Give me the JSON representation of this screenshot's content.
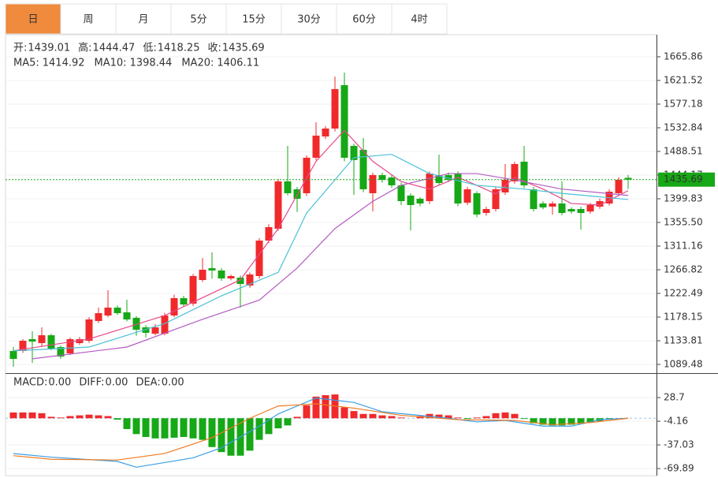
{
  "tabs": [
    "日",
    "周",
    "月",
    "5分",
    "15分",
    "30分",
    "60分",
    "4时"
  ],
  "active_tab": 0,
  "chart_data": [
    {
      "type": "candlestick",
      "up_color": "#f0292b",
      "down_color": "#16a816",
      "open": [
        1114.6,
        1114.6,
        1136.8,
        1129.4,
        1144.1,
        1122.0,
        1110.2,
        1129.4,
        1133.8,
        1170.8,
        1181.1,
        1195.9,
        1187,
        1176.7,
        1158.9,
        1147.1,
        1147.1,
        1181.1,
        1213.6,
        1203.3,
        1247.6,
        1269.8,
        1265.4,
        1250.6,
        1252.0,
        1237.3,
        1255.0,
        1321.5,
        1343.7,
        1432.4,
        1417.6,
        1410.2,
        1476.7,
        1516.6,
        1531.4,
        1612.7,
        1498.9,
        1491.5,
        1410.2,
        1444.2,
        1439.7,
        1425.0,
        1405.8,
        1399.8,
        1395.4,
        1444.2,
        1444.2,
        1447.1,
        1392.5,
        1410.2,
        1373.2,
        1380.6,
        1411.7,
        1432.4,
        1469.3,
        1417.6,
        1391.0,
        1385.1,
        1391.0,
        1380.6,
        1380.6,
        1376,
        1385.1,
        1391.0,
        1410.2,
        1439.01
      ],
      "high": [
        1122.0,
        1137,
        1151.5,
        1158.9,
        1147,
        1125,
        1140,
        1141,
        1178,
        1195.9,
        1228.4,
        1200,
        1210.7,
        1180,
        1163,
        1165,
        1186,
        1220,
        1218,
        1259,
        1289.0,
        1299.3,
        1270,
        1258,
        1256,
        1262,
        1326,
        1352,
        1437,
        1498.9,
        1422,
        1481,
        1543.2,
        1536,
        1628.9,
        1636.3,
        1503,
        1513.6,
        1449,
        1449,
        1444,
        1430,
        1410,
        1403,
        1451,
        1482.6,
        1449,
        1451,
        1422,
        1414,
        1385,
        1422,
        1464.9,
        1469,
        1498.9,
        1422,
        1395,
        1395,
        1432.4,
        1384,
        1385,
        1392,
        1400,
        1418,
        1440,
        1444.47
      ],
      "low": [
        1085.0,
        1111,
        1092.4,
        1122.0,
        1116,
        1099.8,
        1107,
        1126,
        1130,
        1167,
        1178,
        1182,
        1170,
        1143,
        1140,
        1144,
        1144,
        1178,
        1198,
        1199,
        1244,
        1250,
        1246,
        1247,
        1195.9,
        1233,
        1250,
        1317,
        1340,
        1406,
        1375,
        1405,
        1472,
        1512,
        1526,
        1470,
        1407.2,
        1412,
        1376.2,
        1430,
        1420,
        1388.0,
        1340.7,
        1386,
        1390,
        1425,
        1431,
        1386,
        1388,
        1365,
        1368,
        1376,
        1407,
        1428,
        1420,
        1376,
        1380,
        1370,
        1369,
        1372,
        1342,
        1372,
        1381,
        1387,
        1405,
        1418.25
      ],
      "close": [
        1099.8,
        1133.8,
        1132.3,
        1144.1,
        1119.0,
        1104.2,
        1136.8,
        1136.8,
        1173.7,
        1185.5,
        1195.9,
        1185.5,
        1173.7,
        1154.5,
        1148.6,
        1158.9,
        1181.1,
        1213.6,
        1201.8,
        1255.0,
        1266.8,
        1265.4,
        1250.6,
        1255.0,
        1240.2,
        1258.0,
        1321.5,
        1346.6,
        1432.4,
        1410.2,
        1399.8,
        1476.7,
        1518.1,
        1531.4,
        1605.3,
        1476.7,
        1472.3,
        1417.6,
        1444.2,
        1435.3,
        1425.0,
        1395.4,
        1388.0,
        1391.0,
        1447.1,
        1429.4,
        1435.3,
        1391.0,
        1417.6,
        1370.3,
        1380.6,
        1417.6,
        1435.3,
        1464.9,
        1425.0,
        1380.6,
        1383.6,
        1391.0,
        1373.2,
        1376,
        1373.2,
        1388.0,
        1395.4,
        1413.1,
        1435.3,
        1435.69
      ],
      "readout": [
        {
          "label": "开:",
          "value": "1439.01"
        },
        {
          "label": "高:",
          "value": "1444.47"
        },
        {
          "label": "低:",
          "value": "1418.25"
        },
        {
          "label": "收:",
          "value": "1435.69"
        }
      ],
      "readout_value_color": "#16a816",
      "series": [
        {
          "color": "#e8498a",
          "readout": {
            "label": "MA5:",
            "value": "1414.92"
          },
          "x": [
            0,
            8,
            16,
            24,
            28,
            32,
            35,
            38,
            41,
            44,
            47,
            49,
            51,
            53,
            56,
            59,
            62,
            65
          ],
          "values": [
            1115,
            1137,
            1181,
            1248,
            1344,
            1470,
            1528,
            1470,
            1432,
            1418,
            1440,
            1425,
            1409,
            1440,
            1418,
            1391,
            1388,
            1414.92
          ]
        },
        {
          "color": "#4cc0d6",
          "readout": {
            "label": "MA10:",
            "value": "1398.44"
          },
          "x": [
            0,
            8,
            16,
            22,
            28,
            31,
            36,
            40,
            44,
            49,
            54,
            58,
            65
          ],
          "values": [
            1115,
            1122,
            1166,
            1218,
            1262,
            1373,
            1477,
            1483,
            1447,
            1425,
            1418,
            1410,
            1398.44
          ]
        },
        {
          "color": "#b35cc2",
          "readout": {
            "label": "MA20:",
            "value": "1406.11"
          },
          "x": [
            2,
            12,
            20,
            26,
            30,
            34,
            38,
            41,
            46,
            49,
            53,
            58,
            65
          ],
          "values": [
            1100,
            1122,
            1174,
            1210,
            1270,
            1344,
            1395,
            1425,
            1447,
            1447,
            1435,
            1418,
            1406.11
          ]
        }
      ],
      "last_price": 1435.69,
      "last_price_color": "#16a816",
      "ylim": [
        1073.2,
        1707.2
      ],
      "yticks": [
        1665.86,
        1621.52,
        1577.18,
        1532.84,
        1488.51,
        1444.17,
        1399.83,
        {
          "value": 1355.5,
          "label": "1355.50"
        },
        1311.16,
        1266.82,
        1222.49,
        1178.15,
        1133.81,
        1089.48
      ],
      "grid": true
    },
    {
      "type": "macd",
      "up_color": "#f0292b",
      "down_color": "#16a816",
      "values": [
        8,
        8,
        8,
        7,
        2,
        1,
        3,
        4,
        5,
        4,
        3,
        -2,
        -15,
        -22,
        -26,
        -28,
        -28,
        -27,
        -26,
        -28,
        -30,
        -40,
        -47,
        -52,
        -52,
        -45,
        -30,
        -22,
        -14,
        -10,
        2,
        18,
        30,
        32,
        33,
        15,
        10,
        6,
        6,
        4,
        3,
        1,
        0,
        3,
        6,
        5,
        4,
        1,
        -1,
        1,
        3,
        7,
        8,
        6,
        -1,
        -7,
        -9,
        -10,
        -10,
        -9,
        -8,
        -6,
        -4,
        -1,
        0,
        0
      ],
      "readout": [
        {
          "label": "MACD:",
          "value": "0.00",
          "color": "#f0292b"
        },
        {
          "label": "DIFF:",
          "value": "0.00",
          "color": "#3a8ee6"
        },
        {
          "label": "DEA:",
          "value": "0.00",
          "color": "#f07a20"
        }
      ],
      "series": [
        {
          "color": "#3a9ee6",
          "x": [
            0,
            4,
            11,
            13,
            19,
            22,
            26,
            28,
            32,
            36,
            39,
            46,
            49,
            52,
            56,
            59,
            62,
            65
          ],
          "values": [
            -49,
            -54,
            -60,
            -68,
            -55,
            -41,
            -11,
            6,
            28,
            22,
            9,
            0,
            -5,
            -3,
            -11,
            -11,
            -2,
            0
          ]
        },
        {
          "color": "#f07a20",
          "x": [
            0,
            4,
            11,
            16,
            21,
            25,
            28,
            32,
            36,
            41,
            47,
            53,
            57,
            61,
            65
          ],
          "values": [
            -52,
            -57,
            -58,
            -49,
            -27,
            0,
            17,
            20,
            14,
            4,
            -2,
            -3,
            -9,
            -6,
            0
          ]
        }
      ],
      "ylim": [
        -79.7,
        61.6
      ],
      "yticks": [
        28.7,
        -4.16,
        -37.03,
        -69.89
      ],
      "grid": true
    }
  ]
}
